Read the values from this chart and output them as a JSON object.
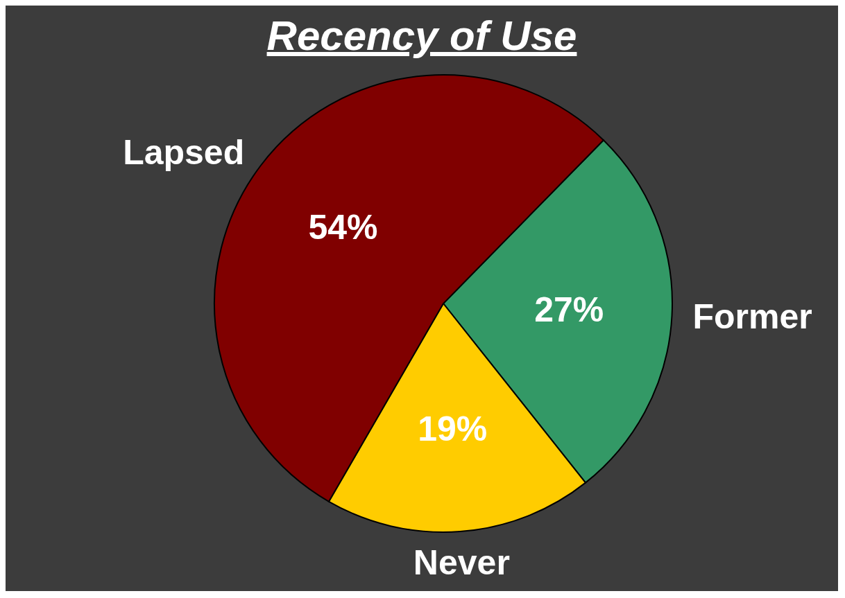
{
  "chart_data": {
    "type": "pie",
    "title": "Recency of Use",
    "categories": [
      "Former",
      "Never",
      "Lapsed"
    ],
    "values": [
      27,
      19,
      54
    ],
    "value_labels": [
      "27%",
      "19%",
      "54%"
    ],
    "colors": [
      "#339966",
      "#ffcc00",
      "#800000"
    ],
    "legend": false
  }
}
